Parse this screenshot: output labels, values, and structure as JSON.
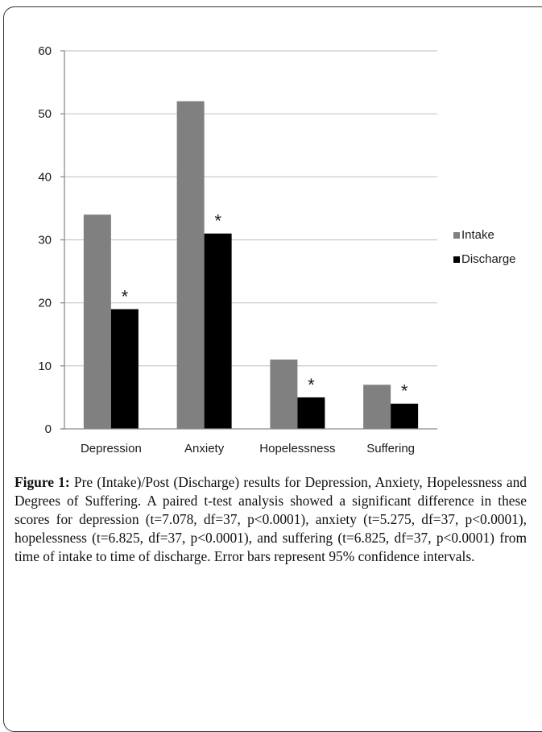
{
  "chart_data": {
    "type": "bar",
    "categories": [
      "Depression",
      "Anxiety",
      "Hopelessness",
      "Suffering"
    ],
    "series": [
      {
        "name": "Intake",
        "values": [
          34,
          52,
          11,
          7
        ],
        "color": "#808080"
      },
      {
        "name": "Discharge",
        "values": [
          19,
          31,
          5,
          4
        ],
        "color": "#000000"
      }
    ],
    "annotations": [
      "*",
      "*",
      "*",
      "*"
    ],
    "ylim": [
      0,
      60
    ],
    "yticks": [
      "0",
      "10",
      "20",
      "30",
      "40",
      "50",
      "60"
    ],
    "grid": true,
    "legend_position": "right"
  },
  "caption": {
    "label": "Figure 1:",
    "text": " Pre (Intake)/Post (Discharge) results for Depression, Anxiety, Hopelessness and Degrees of Suffering. A paired t-test analysis showed a significant difference in these scores for depression (t=7.078, df=37, p<0.0001), anxiety (t=5.275, df=37, p<0.0001), hopelessness (t=6.825, df=37, p<0.0001), and suffering (t=6.825, df=37, p<0.0001) from time of intake to time of discharge. Error bars represent 95% confidence intervals."
  }
}
